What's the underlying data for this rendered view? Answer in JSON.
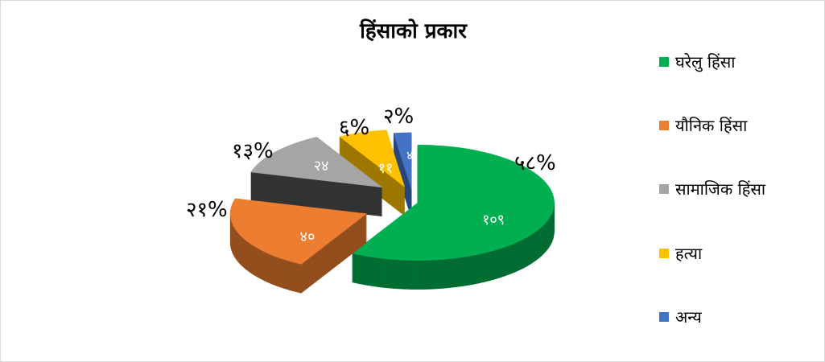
{
  "chart_data": {
    "type": "pie",
    "title": "हिंसाको प्रकार",
    "categories": [
      "घरेलु हिंसा",
      "यौनिक हिंसा",
      "सामाजिक हिंसा",
      "हत्या",
      "अन्य"
    ],
    "values": [
      109,
      40,
      24,
      11,
      4
    ],
    "value_labels": [
      "१०९",
      "४०",
      "२४",
      "११",
      "४"
    ],
    "percent_labels": [
      "५८%",
      "२१%",
      "१३%",
      "६%",
      "२%"
    ],
    "colors": [
      "#00b050",
      "#ed7d31",
      "#a5a5a5",
      "#ffc000",
      "#4472c4"
    ],
    "legend_position": "right",
    "style": "3d-exploded"
  }
}
